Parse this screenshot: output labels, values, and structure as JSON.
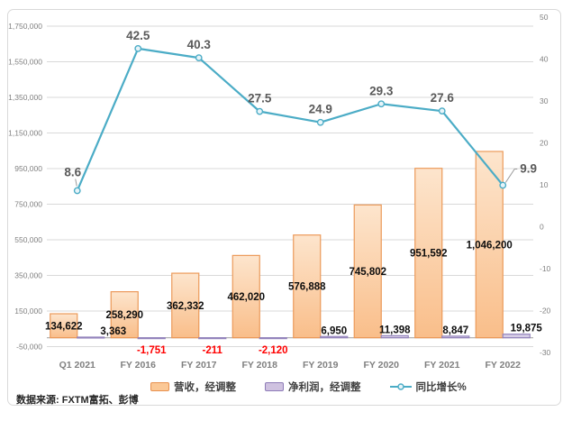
{
  "chart_data": {
    "type": "combo-bar-line",
    "categories": [
      "Q1 2021",
      "FY 2016",
      "FY 2017",
      "FY 2018",
      "FY 2019",
      "FY 2020",
      "FY 2021",
      "FY 2022"
    ],
    "series": [
      {
        "name": "营收，经调整",
        "type": "bar",
        "axis": "left",
        "values": [
          134622,
          258290,
          362332,
          462020,
          576888,
          745802,
          951592,
          1046200
        ],
        "data_labels": [
          "134,622",
          "258,290",
          "362,332",
          "462,020",
          "576,888",
          "745,802",
          "951,592",
          "1,046,200"
        ],
        "label_position": "inside-center",
        "label_color": "#0d0d0d",
        "fill_top": "#fde5cd",
        "fill_bottom": "#f9be8a",
        "border": "#ec9a5a"
      },
      {
        "name": "净利润，经调整",
        "type": "bar",
        "axis": "left",
        "values": [
          3363,
          -1751,
          -211,
          -2120,
          6950,
          11398,
          8847,
          19875
        ],
        "data_labels": [
          "3,363",
          "-1,751",
          "-211",
          "-2,120",
          "6,950",
          "11,398",
          "8,847",
          "19,875"
        ],
        "label_position": "outside-end",
        "positive_label_color": "#0d0d0d",
        "negative_label_color": "#ff0000",
        "fill": "#d6cde6",
        "border": "#9484bc"
      },
      {
        "name": "同比增长%",
        "type": "line",
        "axis": "right",
        "values": [
          8.6,
          42.5,
          40.3,
          27.5,
          24.9,
          29.3,
          27.6,
          9.9
        ],
        "data_labels": [
          "8.6",
          "42.5",
          "40.3",
          "27.5",
          "24.9",
          "29.3",
          "27.6",
          "9.9"
        ],
        "color": "#4bacc6",
        "marker": "circle",
        "marker_fill": "#e7f4f9",
        "label_color": "#595959"
      }
    ],
    "left_axis": {
      "min": -50000,
      "max": 1750000,
      "step": 200000,
      "ticks": [
        "1,750,000",
        "1,550,000",
        "1,350,000",
        "1,150,000",
        "950,000",
        "750,000",
        "550,000",
        "350,000",
        "150,000",
        "-50,000"
      ]
    },
    "right_axis": {
      "min": -30,
      "max": 50,
      "step": 10,
      "ticks": [
        "50",
        "40",
        "30",
        "20",
        "10",
        "0",
        "-10",
        "-20",
        "-30"
      ]
    },
    "grid": true,
    "legend_position": "bottom"
  },
  "colors": {
    "gridline": "#d9d9d9",
    "zero_line": "#b3b3b3",
    "axis_text": "#808080",
    "category_text": "#7f7f7f",
    "leader_line": "#999999",
    "frame_border": "#d9d9d9"
  },
  "legend": {
    "items": [
      {
        "label": "营收，经调整",
        "type": "bar",
        "fill": "#fbc896",
        "border": "#e8914f"
      },
      {
        "label": "净利润，经调整",
        "type": "bar",
        "fill": "#cfc2e0",
        "border": "#8e7cb8"
      },
      {
        "label": "同比增长%",
        "type": "line",
        "color": "#4bacc6",
        "marker_fill": "#e7f4f9"
      }
    ]
  },
  "source_note": {
    "text": "数据来源: FXTM富拓、彭博"
  }
}
